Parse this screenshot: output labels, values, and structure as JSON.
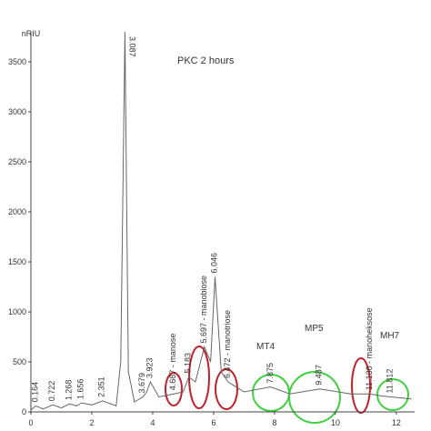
{
  "chart_data": {
    "type": "line",
    "y_label": "nRIU",
    "title": "PKC 2 hours",
    "x": [
      0,
      0.164,
      0.4,
      0.722,
      1.0,
      1.268,
      1.5,
      1.656,
      2.0,
      2.351,
      2.8,
      2.95,
      3.087,
      3.2,
      3.4,
      3.679,
      3.8,
      3.923,
      4.2,
      4.687,
      5.0,
      5.183,
      5.4,
      5.697,
      5.9,
      6.046,
      6.25,
      6.472,
      7.0,
      7.875,
      8.5,
      9.487,
      10.5,
      11.13,
      11.5,
      11.812,
      12.5
    ],
    "series": [
      {
        "color": "#666666",
        "values": [
          20,
          60,
          30,
          70,
          40,
          80,
          60,
          90,
          70,
          110,
          60,
          500,
          3800,
          400,
          100,
          150,
          200,
          300,
          150,
          180,
          200,
          350,
          300,
          650,
          500,
          1350,
          400,
          300,
          200,
          250,
          180,
          230,
          180,
          180,
          160,
          150,
          130
        ]
      }
    ],
    "xlim": [
      0,
      12.6
    ],
    "xticks": [
      0,
      2,
      4,
      6,
      8,
      10,
      12
    ],
    "ylim": [
      0,
      3800
    ],
    "yticks": [
      0,
      500,
      1000,
      1500,
      2000,
      2500,
      3000,
      3500
    ],
    "annotations": [
      {
        "x": 0.164,
        "text": "0.164"
      },
      {
        "x": 0.722,
        "text": "0.722"
      },
      {
        "x": 1.268,
        "text": "1.268"
      },
      {
        "x": 1.656,
        "text": "1.656"
      },
      {
        "x": 2.351,
        "text": "2.351"
      },
      {
        "x": 3.087,
        "text": "3.087"
      },
      {
        "x": 3.679,
        "text": "3.679"
      },
      {
        "x": 3.923,
        "text": "3.923"
      },
      {
        "x": 4.687,
        "text": "4.687 - manose"
      },
      {
        "x": 5.183,
        "text": "5.183"
      },
      {
        "x": 5.697,
        "text": "5.697 - manobiose"
      },
      {
        "x": 6.046,
        "text": "6.046"
      },
      {
        "x": 6.472,
        "text": "6.472 - manotriose"
      },
      {
        "x": 7.875,
        "text": "7.875"
      },
      {
        "x": 9.487,
        "text": "9.487"
      },
      {
        "x": 11.13,
        "text": "11.130 - manoheksose"
      },
      {
        "x": 11.812,
        "text": "11.812"
      }
    ],
    "group_labels": [
      "MT4",
      "MP5",
      "MH7"
    ]
  }
}
